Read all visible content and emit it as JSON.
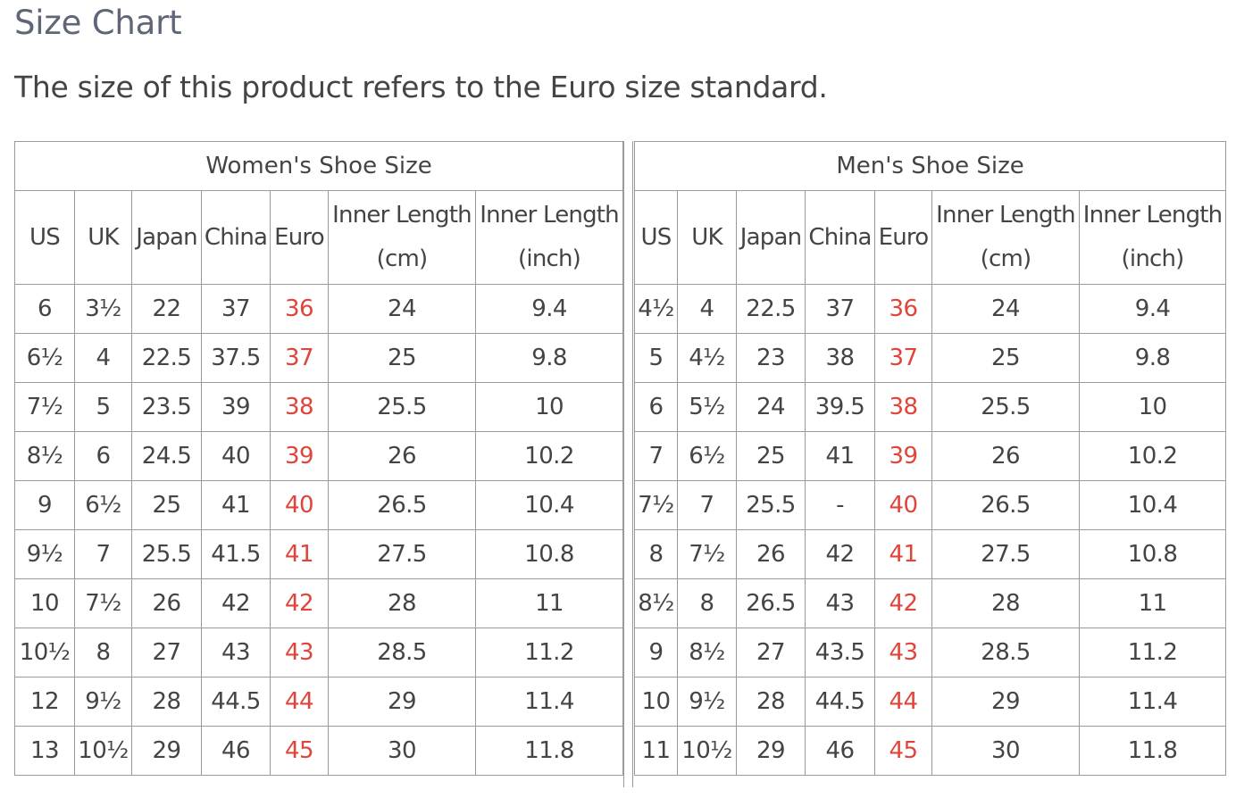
{
  "page": {
    "title": "Size Chart",
    "subtitle": "The size of this product refers to the Euro size standard."
  },
  "accent_color": "#e0443a",
  "columns": {
    "us": "US",
    "uk": "UK",
    "japan": "Japan",
    "china": "China",
    "euro": "Euro",
    "inner_length": "Inner Length",
    "cm_unit": "(cm)",
    "inch_unit": "(inch)"
  },
  "women": {
    "title": "Women's Shoe Size",
    "rows": [
      [
        "6",
        "3½",
        "22",
        "37",
        "36",
        "24",
        "9.4"
      ],
      [
        "6½",
        "4",
        "22.5",
        "37.5",
        "37",
        "25",
        "9.8"
      ],
      [
        "7½",
        "5",
        "23.5",
        "39",
        "38",
        "25.5",
        "10"
      ],
      [
        "8½",
        "6",
        "24.5",
        "40",
        "39",
        "26",
        "10.2"
      ],
      [
        "9",
        "6½",
        "25",
        "41",
        "40",
        "26.5",
        "10.4"
      ],
      [
        "9½",
        "7",
        "25.5",
        "41.5",
        "41",
        "27.5",
        "10.8"
      ],
      [
        "10",
        "7½",
        "26",
        "42",
        "42",
        "28",
        "11"
      ],
      [
        "10½",
        "8",
        "27",
        "43",
        "43",
        "28.5",
        "11.2"
      ],
      [
        "12",
        "9½",
        "28",
        "44.5",
        "44",
        "29",
        "11.4"
      ],
      [
        "13",
        "10½",
        "29",
        "46",
        "45",
        "30",
        "11.8"
      ]
    ]
  },
  "men": {
    "title": "Men's Shoe Size",
    "rows": [
      [
        "4½",
        "4",
        "22.5",
        "37",
        "36",
        "24",
        "9.4"
      ],
      [
        "5",
        "4½",
        "23",
        "38",
        "37",
        "25",
        "9.8"
      ],
      [
        "6",
        "5½",
        "24",
        "39.5",
        "38",
        "25.5",
        "10"
      ],
      [
        "7",
        "6½",
        "25",
        "41",
        "39",
        "26",
        "10.2"
      ],
      [
        "7½",
        "7",
        "25.5",
        "-",
        "40",
        "26.5",
        "10.4"
      ],
      [
        "8",
        "7½",
        "26",
        "42",
        "41",
        "27.5",
        "10.8"
      ],
      [
        "8½",
        "8",
        "26.5",
        "43",
        "42",
        "28",
        "11"
      ],
      [
        "9",
        "8½",
        "27",
        "43.5",
        "43",
        "28.5",
        "11.2"
      ],
      [
        "10",
        "9½",
        "28",
        "44.5",
        "44",
        "29",
        "11.4"
      ],
      [
        "11",
        "10½",
        "29",
        "46",
        "45",
        "30",
        "11.8"
      ]
    ]
  }
}
